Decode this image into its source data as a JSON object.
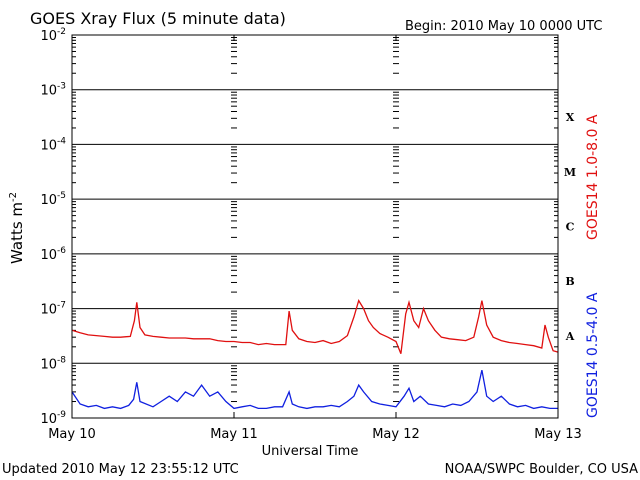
{
  "chart_data": {
    "type": "line",
    "title": "GOES Xray Flux (5 minute data)",
    "begin_text": "Begin:  2010 May 10 0000 UTC",
    "xlabel": "Universal Time",
    "ylabel_base": "Watts m",
    "ylabel_exp": "-2",
    "yscale": "log",
    "ylim": [
      1e-09,
      0.01
    ],
    "xlim_days": [
      0,
      3
    ],
    "x_ticks": [
      {
        "day": 0,
        "label": "May 10"
      },
      {
        "day": 1,
        "label": "May 11"
      },
      {
        "day": 2,
        "label": "May 12"
      },
      {
        "day": 3,
        "label": "May 13"
      }
    ],
    "y_ticks": [
      {
        "exp": -2,
        "base": "10",
        "sup": "-2"
      },
      {
        "exp": -3,
        "base": "10",
        "sup": "-3"
      },
      {
        "exp": -4,
        "base": "10",
        "sup": "-4"
      },
      {
        "exp": -5,
        "base": "10",
        "sup": "-5"
      },
      {
        "exp": -6,
        "base": "10",
        "sup": "-6"
      },
      {
        "exp": -7,
        "base": "10",
        "sup": "-7"
      },
      {
        "exp": -8,
        "base": "10",
        "sup": "-8"
      },
      {
        "exp": -9,
        "base": "10",
        "sup": "-9"
      }
    ],
    "flare_classes": [
      {
        "label": "X",
        "exp": -3.5
      },
      {
        "label": "M",
        "exp": -4.5
      },
      {
        "label": "C",
        "exp": -5.5
      },
      {
        "label": "B",
        "exp": -6.5
      },
      {
        "label": "A",
        "exp": -7.5
      }
    ],
    "grid": true,
    "series": [
      {
        "name": "GOES14 1.0-8.0 A",
        "color": "#e01010",
        "points": [
          [
            0.0,
            4e-08
          ],
          [
            0.05,
            3.6e-08
          ],
          [
            0.1,
            3.3e-08
          ],
          [
            0.15,
            3.2e-08
          ],
          [
            0.2,
            3.1e-08
          ],
          [
            0.25,
            3e-08
          ],
          [
            0.3,
            3e-08
          ],
          [
            0.36,
            3.1e-08
          ],
          [
            0.385,
            6e-08
          ],
          [
            0.4,
            1.3e-07
          ],
          [
            0.42,
            4.5e-08
          ],
          [
            0.45,
            3.3e-08
          ],
          [
            0.5,
            3.1e-08
          ],
          [
            0.55,
            3e-08
          ],
          [
            0.6,
            2.9e-08
          ],
          [
            0.65,
            2.9e-08
          ],
          [
            0.7,
            2.9e-08
          ],
          [
            0.75,
            2.8e-08
          ],
          [
            0.8,
            2.8e-08
          ],
          [
            0.85,
            2.8e-08
          ],
          [
            0.9,
            2.6e-08
          ],
          [
            0.95,
            2.5e-08
          ],
          [
            1.0,
            2.5e-08
          ],
          [
            1.05,
            2.4e-08
          ],
          [
            1.1,
            2.4e-08
          ],
          [
            1.15,
            2.2e-08
          ],
          [
            1.2,
            2.3e-08
          ],
          [
            1.25,
            2.2e-08
          ],
          [
            1.32,
            2.2e-08
          ],
          [
            1.34,
            9e-08
          ],
          [
            1.36,
            4e-08
          ],
          [
            1.4,
            2.8e-08
          ],
          [
            1.45,
            2.5e-08
          ],
          [
            1.5,
            2.4e-08
          ],
          [
            1.55,
            2.6e-08
          ],
          [
            1.6,
            2.3e-08
          ],
          [
            1.65,
            2.5e-08
          ],
          [
            1.7,
            3.2e-08
          ],
          [
            1.74,
            7e-08
          ],
          [
            1.77,
            1.4e-07
          ],
          [
            1.8,
            1e-07
          ],
          [
            1.83,
            6e-08
          ],
          [
            1.86,
            4.5e-08
          ],
          [
            1.9,
            3.5e-08
          ],
          [
            1.95,
            3e-08
          ],
          [
            2.0,
            2.5e-08
          ],
          [
            2.03,
            1.5e-08
          ],
          [
            2.06,
            8e-08
          ],
          [
            2.08,
            1.3e-07
          ],
          [
            2.11,
            6e-08
          ],
          [
            2.14,
            4.5e-08
          ],
          [
            2.17,
            1e-07
          ],
          [
            2.2,
            6e-08
          ],
          [
            2.24,
            4e-08
          ],
          [
            2.28,
            3e-08
          ],
          [
            2.33,
            2.8e-08
          ],
          [
            2.38,
            2.7e-08
          ],
          [
            2.43,
            2.6e-08
          ],
          [
            2.48,
            3e-08
          ],
          [
            2.51,
            7e-08
          ],
          [
            2.53,
            1.4e-07
          ],
          [
            2.56,
            5e-08
          ],
          [
            2.6,
            3e-08
          ],
          [
            2.65,
            2.6e-08
          ],
          [
            2.7,
            2.4e-08
          ],
          [
            2.75,
            2.3e-08
          ],
          [
            2.8,
            2.2e-08
          ],
          [
            2.85,
            2.1e-08
          ],
          [
            2.9,
            1.9e-08
          ],
          [
            2.92,
            5e-08
          ],
          [
            2.94,
            3e-08
          ],
          [
            2.97,
            1.7e-08
          ],
          [
            3.0,
            1.6e-08
          ]
        ]
      },
      {
        "name": "GOES14 0.5-4.0 A",
        "color": "#1020e0",
        "points": [
          [
            0.0,
            3e-09
          ],
          [
            0.05,
            1.8e-09
          ],
          [
            0.1,
            1.6e-09
          ],
          [
            0.15,
            1.7e-09
          ],
          [
            0.2,
            1.5e-09
          ],
          [
            0.25,
            1.6e-09
          ],
          [
            0.3,
            1.5e-09
          ],
          [
            0.35,
            1.7e-09
          ],
          [
            0.38,
            2.2e-09
          ],
          [
            0.4,
            4.5e-09
          ],
          [
            0.42,
            2e-09
          ],
          [
            0.5,
            1.6e-09
          ],
          [
            0.55,
            2e-09
          ],
          [
            0.6,
            2.5e-09
          ],
          [
            0.65,
            2e-09
          ],
          [
            0.7,
            3e-09
          ],
          [
            0.75,
            2.5e-09
          ],
          [
            0.8,
            4e-09
          ],
          [
            0.85,
            2.5e-09
          ],
          [
            0.9,
            3e-09
          ],
          [
            0.95,
            2e-09
          ],
          [
            1.0,
            1.5e-09
          ],
          [
            1.05,
            1.6e-09
          ],
          [
            1.1,
            1.7e-09
          ],
          [
            1.15,
            1.5e-09
          ],
          [
            1.2,
            1.5e-09
          ],
          [
            1.25,
            1.6e-09
          ],
          [
            1.3,
            1.6e-09
          ],
          [
            1.34,
            3e-09
          ],
          [
            1.36,
            1.8e-09
          ],
          [
            1.4,
            1.6e-09
          ],
          [
            1.45,
            1.5e-09
          ],
          [
            1.5,
            1.6e-09
          ],
          [
            1.55,
            1.6e-09
          ],
          [
            1.6,
            1.7e-09
          ],
          [
            1.65,
            1.6e-09
          ],
          [
            1.7,
            2e-09
          ],
          [
            1.74,
            2.5e-09
          ],
          [
            1.77,
            4e-09
          ],
          [
            1.8,
            3e-09
          ],
          [
            1.85,
            2e-09
          ],
          [
            1.9,
            1.8e-09
          ],
          [
            1.95,
            1.7e-09
          ],
          [
            2.0,
            1.6e-09
          ],
          [
            2.05,
            2.5e-09
          ],
          [
            2.08,
            3.5e-09
          ],
          [
            2.11,
            2e-09
          ],
          [
            2.15,
            2.5e-09
          ],
          [
            2.2,
            1.8e-09
          ],
          [
            2.25,
            1.7e-09
          ],
          [
            2.3,
            1.6e-09
          ],
          [
            2.35,
            1.8e-09
          ],
          [
            2.4,
            1.7e-09
          ],
          [
            2.45,
            2e-09
          ],
          [
            2.5,
            3e-09
          ],
          [
            2.53,
            7.5e-09
          ],
          [
            2.56,
            2.5e-09
          ],
          [
            2.6,
            2e-09
          ],
          [
            2.65,
            2.5e-09
          ],
          [
            2.7,
            1.8e-09
          ],
          [
            2.75,
            1.6e-09
          ],
          [
            2.8,
            1.7e-09
          ],
          [
            2.85,
            1.5e-09
          ],
          [
            2.9,
            1.6e-09
          ],
          [
            2.95,
            1.5e-09
          ],
          [
            3.0,
            1.5e-09
          ]
        ]
      }
    ]
  },
  "footer": {
    "updated": "Updated 2010 May 12 23:55:12 UTC",
    "credit": "NOAA/SWPC Boulder, CO USA"
  }
}
